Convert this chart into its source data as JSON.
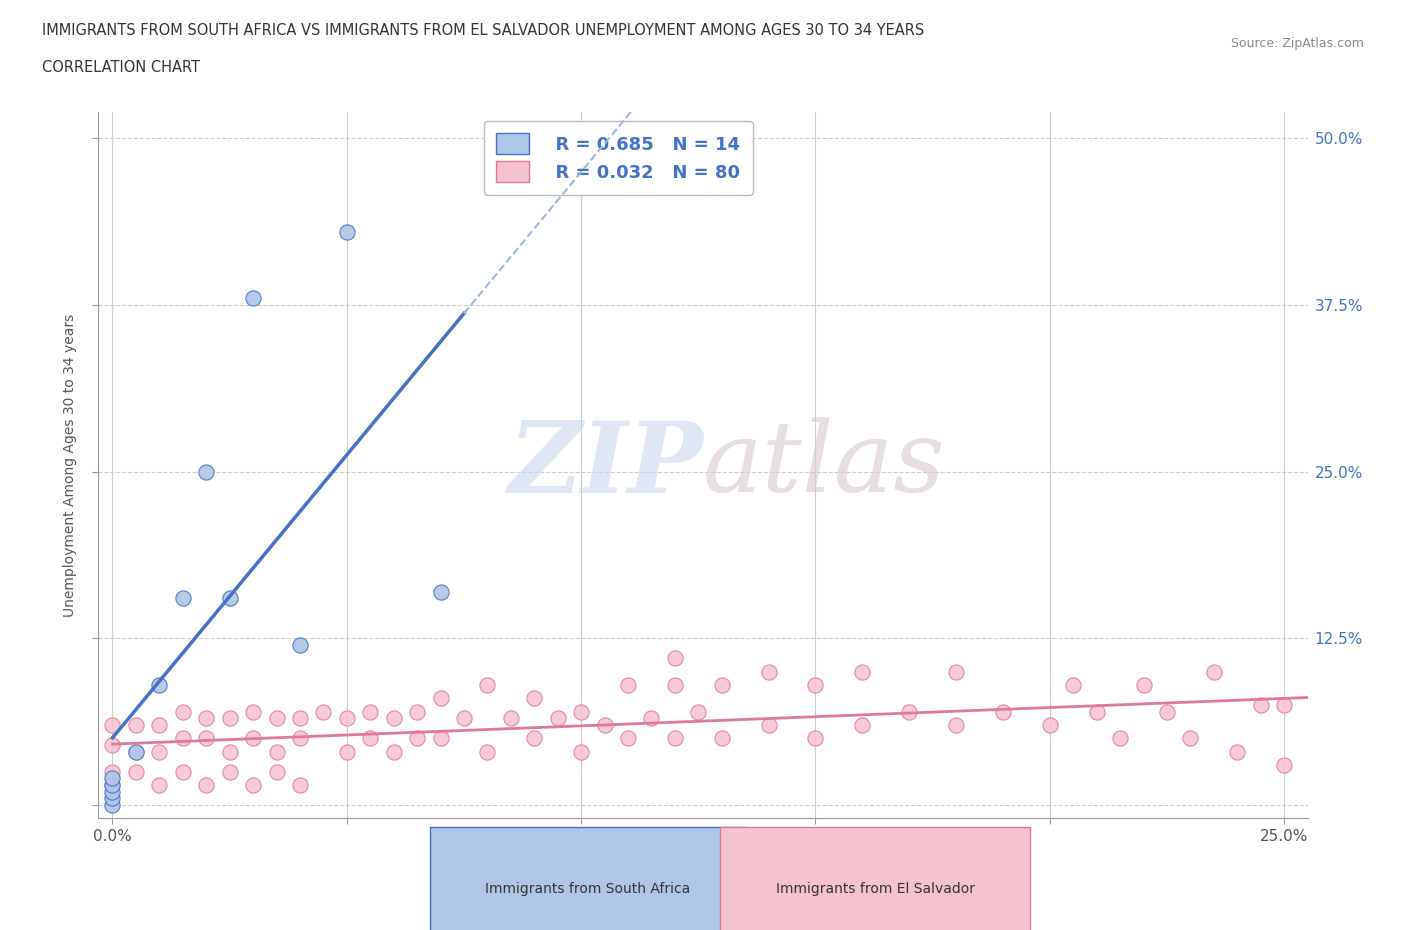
{
  "title_line1": "IMMIGRANTS FROM SOUTH AFRICA VS IMMIGRANTS FROM EL SALVADOR UNEMPLOYMENT AMONG AGES 30 TO 34 YEARS",
  "title_line2": "CORRELATION CHART",
  "source_text": "Source: ZipAtlas.com",
  "ylabel": "Unemployment Among Ages 30 to 34 years",
  "xlim": [
    -0.003,
    0.255
  ],
  "ylim": [
    -0.01,
    0.52
  ],
  "background_color": "#ffffff",
  "watermark_zip": "ZIP",
  "watermark_atlas": "atlas",
  "legend_r1": "R = 0.685",
  "legend_n1": "N = 14",
  "legend_r2": "R = 0.032",
  "legend_n2": "N = 80",
  "blue_face_color": "#aec6e8",
  "blue_edge_color": "#4472c4",
  "pink_face_color": "#f5c2d0",
  "pink_edge_color": "#e07898",
  "blue_line_color": "#4472c4",
  "pink_line_color": "#e07898",
  "dash_line_color": "#9db8d8",
  "sa_x": [
    0.0,
    0.0,
    0.0,
    0.0,
    0.0,
    0.005,
    0.01,
    0.015,
    0.02,
    0.025,
    0.03,
    0.04,
    0.05,
    0.07
  ],
  "sa_y": [
    0.0,
    0.005,
    0.01,
    0.015,
    0.02,
    0.04,
    0.09,
    0.155,
    0.25,
    0.155,
    0.38,
    0.12,
    0.43,
    0.16
  ],
  "es_x": [
    0.0,
    0.0,
    0.0,
    0.005,
    0.005,
    0.01,
    0.01,
    0.015,
    0.015,
    0.02,
    0.02,
    0.025,
    0.025,
    0.03,
    0.03,
    0.035,
    0.035,
    0.04,
    0.04,
    0.045,
    0.05,
    0.05,
    0.055,
    0.055,
    0.06,
    0.06,
    0.065,
    0.065,
    0.07,
    0.07,
    0.075,
    0.08,
    0.08,
    0.085,
    0.09,
    0.09,
    0.095,
    0.1,
    0.1,
    0.105,
    0.11,
    0.11,
    0.115,
    0.12,
    0.12,
    0.125,
    0.13,
    0.13,
    0.14,
    0.14,
    0.15,
    0.15,
    0.16,
    0.16,
    0.17,
    0.18,
    0.18,
    0.19,
    0.2,
    0.205,
    0.21,
    0.215,
    0.22,
    0.225,
    0.23,
    0.235,
    0.24,
    0.245,
    0.25,
    0.25,
    0.0,
    0.005,
    0.01,
    0.015,
    0.02,
    0.025,
    0.03,
    0.035,
    0.04,
    0.12
  ],
  "es_y": [
    0.025,
    0.045,
    0.06,
    0.04,
    0.06,
    0.04,
    0.06,
    0.05,
    0.07,
    0.05,
    0.065,
    0.04,
    0.065,
    0.05,
    0.07,
    0.04,
    0.065,
    0.05,
    0.065,
    0.07,
    0.04,
    0.065,
    0.05,
    0.07,
    0.04,
    0.065,
    0.05,
    0.07,
    0.05,
    0.08,
    0.065,
    0.04,
    0.09,
    0.065,
    0.05,
    0.08,
    0.065,
    0.04,
    0.07,
    0.06,
    0.05,
    0.09,
    0.065,
    0.05,
    0.09,
    0.07,
    0.05,
    0.09,
    0.06,
    0.1,
    0.05,
    0.09,
    0.06,
    0.1,
    0.07,
    0.06,
    0.1,
    0.07,
    0.06,
    0.09,
    0.07,
    0.05,
    0.09,
    0.07,
    0.05,
    0.1,
    0.04,
    0.075,
    0.03,
    0.075,
    0.015,
    0.025,
    0.015,
    0.025,
    0.015,
    0.025,
    0.015,
    0.025,
    0.015,
    0.11
  ]
}
